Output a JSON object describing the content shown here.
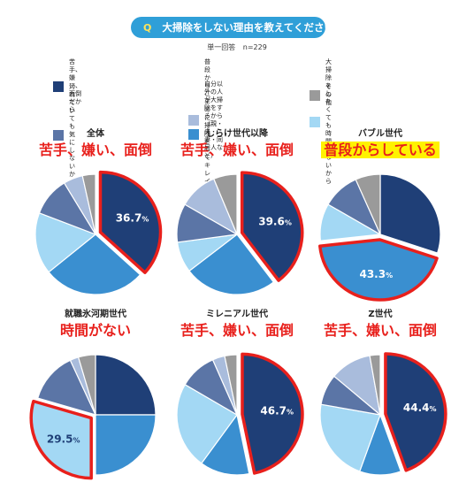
{
  "header": {
    "q_mark": "Q",
    "question": "大掃除をしない理由を教えてください"
  },
  "meta": {
    "answer_type": "単一回答",
    "sample": "n=229"
  },
  "legend": [
    {
      "label": "苦手、嫌い、面倒だから",
      "color": "#1f3f77"
    },
    {
      "label": "普段からこまめに\n掃除をしてキレイだから",
      "color": "#3a8fd0"
    },
    {
      "label": "大掃除をしたくても時間がないから",
      "color": "#a3d8f4"
    },
    {
      "label": "汚れていても気にしないから",
      "color": "#5b75a6"
    },
    {
      "label": "自分以外の人が大掃除をするから\n（親・夫・妻・同居人など）",
      "color": "#a9bcdc"
    },
    {
      "label": "その他",
      "color": "#9a9a9a"
    }
  ],
  "chart_data": [
    {
      "type": "pie",
      "title": "全体",
      "annotation": "苦手、嫌い、面倒",
      "highlight": 0,
      "slices": [
        {
          "category": "苦手、嫌い、面倒だから",
          "value": 36.7
        },
        {
          "category": "普段からこまめに掃除をしてキレイだから",
          "value": 27.5
        },
        {
          "category": "大掃除をしたくても時間がないから",
          "value": 16.6
        },
        {
          "category": "汚れていても気にしないから",
          "value": 10.5
        },
        {
          "category": "自分以外の人が大掃除をするから",
          "value": 5.2
        },
        {
          "category": "その他",
          "value": 3.5
        }
      ]
    },
    {
      "type": "pie",
      "title": "しらけ世代以降",
      "annotation": "苦手、嫌い、面倒",
      "highlight": 0,
      "slices": [
        {
          "category": "苦手、嫌い、面倒だから",
          "value": 39.6
        },
        {
          "category": "普段からこまめに掃除をしてキレイだから",
          "value": 25.0
        },
        {
          "category": "大掃除をしたくても時間がないから",
          "value": 8.3
        },
        {
          "category": "汚れていても気にしないから",
          "value": 10.4
        },
        {
          "category": "自分以外の人が大掃除をするから",
          "value": 10.4
        },
        {
          "category": "その他",
          "value": 6.3
        }
      ]
    },
    {
      "type": "pie",
      "title": "バブル世代",
      "annotation": "普段からしている",
      "annotation_highlight": true,
      "highlight": 1,
      "slices": [
        {
          "category": "苦手、嫌い、面倒だから",
          "value": 30.0
        },
        {
          "category": "普段からこまめに掃除をしてキレイだから",
          "value": 43.3
        },
        {
          "category": "大掃除をしたくても時間がないから",
          "value": 10.0
        },
        {
          "category": "汚れていても気にしないから",
          "value": 10.0
        },
        {
          "category": "自分以外の人が大掃除をするから",
          "value": 0
        },
        {
          "category": "その他",
          "value": 6.7
        }
      ]
    },
    {
      "type": "pie",
      "title": "就職氷河期世代",
      "annotation": "時間がない",
      "highlight": 2,
      "slices": [
        {
          "category": "苦手、嫌い、面倒だから",
          "value": 25.0
        },
        {
          "category": "普段からこまめに掃除をしてキレイだから",
          "value": 25.0
        },
        {
          "category": "大掃除をしたくても時間がないから",
          "value": 29.5
        },
        {
          "category": "汚れていても気にしないから",
          "value": 13.6
        },
        {
          "category": "自分以外の人が大掃除をするから",
          "value": 2.3
        },
        {
          "category": "その他",
          "value": 4.6
        }
      ]
    },
    {
      "type": "pie",
      "title": "ミレニアル世代",
      "annotation": "苦手、嫌い、面倒",
      "highlight": 0,
      "slices": [
        {
          "category": "苦手、嫌い、面倒だから",
          "value": 46.7
        },
        {
          "category": "普段からこまめに掃除をしてキレイだから",
          "value": 13.3
        },
        {
          "category": "大掃除をしたくても時間がないから",
          "value": 23.3
        },
        {
          "category": "汚れていても気にしないから",
          "value": 10.0
        },
        {
          "category": "自分以外の人が大掃除をするから",
          "value": 3.3
        },
        {
          "category": "その他",
          "value": 3.3
        }
      ]
    },
    {
      "type": "pie",
      "title": "Z世代",
      "annotation": "苦手、嫌い、面倒",
      "highlight": 0,
      "slices": [
        {
          "category": "苦手、嫌い、面倒だから",
          "value": 44.4
        },
        {
          "category": "普段からこまめに掃除をしてキレイだから",
          "value": 11.1
        },
        {
          "category": "大掃除をしたくても時間がないから",
          "value": 22.2
        },
        {
          "category": "汚れていても気にしないから",
          "value": 8.3
        },
        {
          "category": "自分以外の人が大掃除をするから",
          "value": 11.1
        },
        {
          "category": "その他",
          "value": 2.8
        }
      ]
    }
  ]
}
